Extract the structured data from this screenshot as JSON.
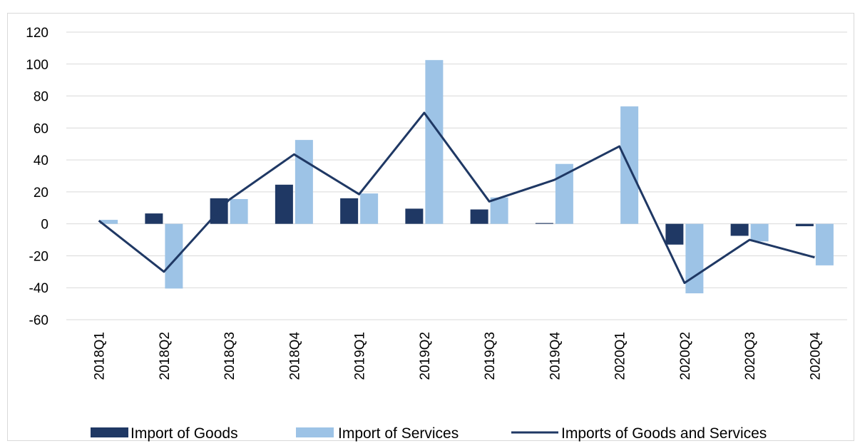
{
  "chart_data": {
    "type": "bar",
    "categories": [
      "2018Q1",
      "2018Q2",
      "2018Q3",
      "2018Q4",
      "2019Q1",
      "2019Q2",
      "2019Q3",
      "2019Q4",
      "2020Q1",
      "2020Q2",
      "2020Q3",
      "2020Q4"
    ],
    "series": [
      {
        "name": "Import of Goods",
        "type": "bar",
        "color": "#1f3864",
        "values": [
          0,
          6.5,
          16,
          24.5,
          16,
          9.5,
          9,
          0.5,
          0,
          -13,
          -7.5,
          -1.5
        ]
      },
      {
        "name": "Import of Services",
        "type": "bar",
        "color": "#9dc3e6",
        "values": [
          2.5,
          -40.5,
          15.5,
          52.5,
          19,
          102.5,
          16.5,
          37.5,
          73.5,
          -43.5,
          -11,
          -26
        ]
      },
      {
        "name": "Imports of Goods and Services",
        "type": "line",
        "color": "#1f3864",
        "values": [
          2,
          -30,
          15,
          43.5,
          18.5,
          69.5,
          14,
          27.5,
          48.5,
          -37,
          -10,
          -21
        ]
      }
    ],
    "ylim": [
      -60,
      120
    ],
    "yticks": [
      -60,
      -40,
      -20,
      0,
      20,
      40,
      60,
      80,
      100,
      120
    ],
    "grid": true,
    "legend_position": "bottom",
    "title": "",
    "xlabel": "",
    "ylabel": ""
  }
}
